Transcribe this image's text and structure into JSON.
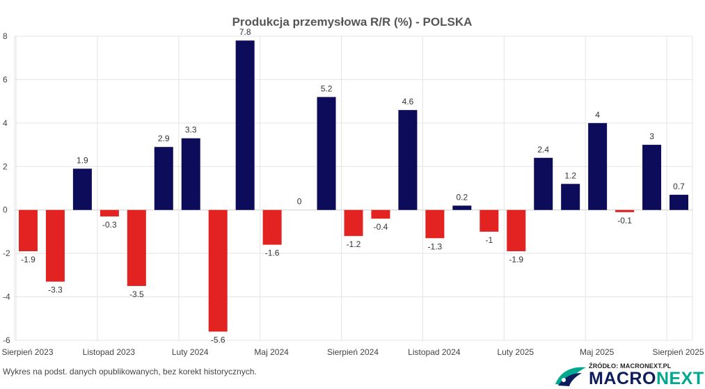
{
  "chart_data": {
    "type": "bar",
    "title": "Produkcja przemysłowa R/R (%) - POLSKA",
    "xlabel": "",
    "ylabel": "",
    "ylim": [
      -6,
      8
    ],
    "yticks": [
      8,
      6,
      4,
      2,
      0,
      -2,
      -4,
      -6
    ],
    "grid": true,
    "x_tick_labels": [
      {
        "index": 0,
        "label": "Sierpień 2023"
      },
      {
        "index": 3,
        "label": "Listopad 2023"
      },
      {
        "index": 6,
        "label": "Luty 2024"
      },
      {
        "index": 9,
        "label": "Maj 2024"
      },
      {
        "index": 12,
        "label": "Sierpień 2024"
      },
      {
        "index": 15,
        "label": "Listopad 2024"
      },
      {
        "index": 18,
        "label": "Luty 2025"
      },
      {
        "index": 21,
        "label": "Maj 2025"
      },
      {
        "index": 24,
        "label": "Sierpień 2025"
      }
    ],
    "values": [
      -1.9,
      -3.3,
      1.9,
      -0.3,
      -3.5,
      2.9,
      3.3,
      -5.6,
      7.8,
      -1.6,
      0,
      5.2,
      -1.2,
      -0.4,
      4.6,
      -1.3,
      0.2,
      -1,
      -1.9,
      2.4,
      1.2,
      4,
      -0.1,
      3,
      0.7
    ],
    "data_labels": [
      "-1.9",
      "-3.3",
      "1.9",
      "-0.3",
      "-3.5",
      "2.9",
      "3.3",
      "-5.6",
      "7.8",
      "-1.6",
      "0",
      "5.2",
      "-1.2",
      "-0.4",
      "4.6",
      "-1.3",
      "0.2",
      "-1",
      "-1.9",
      "2.4",
      "1.2",
      "4",
      "-0.1",
      "3",
      "0.7"
    ],
    "colors": {
      "positive": "#0c0c5a",
      "negative": "#e32222",
      "grid": "#e3e3e3",
      "axis": "#cfcfcf"
    }
  },
  "footnote": "Wykres na podst. danych opublikowanych, bez korekt historycznych.",
  "logo": {
    "source_label": "ŹRÓDŁO: MACRONEXT.PL",
    "brand_part1": "MACRO",
    "brand_part2": "NEXT"
  }
}
